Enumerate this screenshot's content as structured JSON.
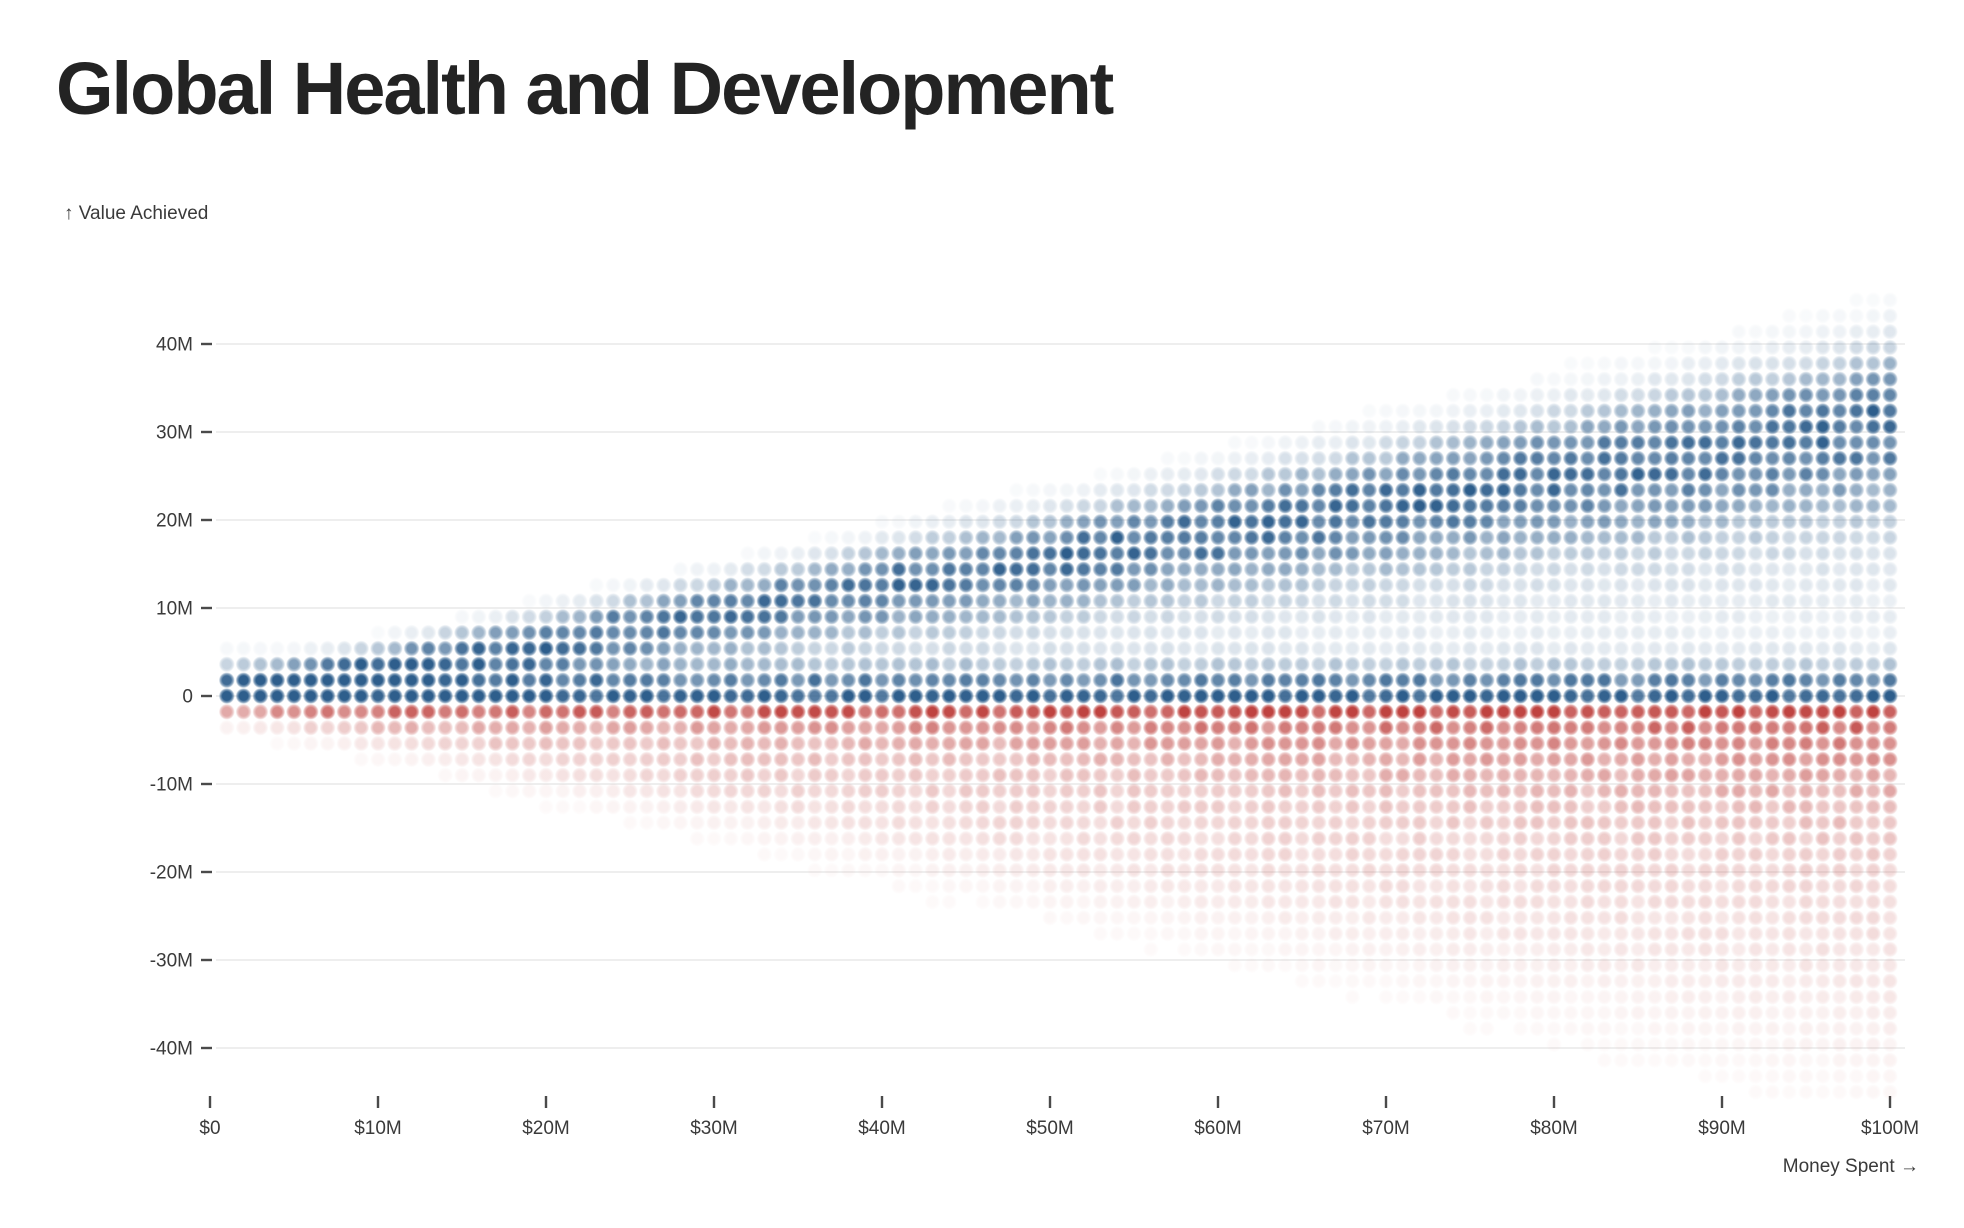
{
  "page": {
    "background": "#ffffff"
  },
  "chart_data": {
    "type": "scatter",
    "variant": "probability-dot-grid-fan",
    "title": "Global Health and Development",
    "x_axis": {
      "label": "Money Spent →",
      "unit": "US dollars, millions",
      "min": 0,
      "max": 100,
      "ticks": [
        {
          "value": 0,
          "label": "$0"
        },
        {
          "value": 10,
          "label": "$10M"
        },
        {
          "value": 20,
          "label": "$20M"
        },
        {
          "value": 30,
          "label": "$30M"
        },
        {
          "value": 40,
          "label": "$40M"
        },
        {
          "value": 50,
          "label": "$50M"
        },
        {
          "value": 60,
          "label": "$60M"
        },
        {
          "value": 70,
          "label": "$70M"
        },
        {
          "value": 80,
          "label": "$80M"
        },
        {
          "value": 90,
          "label": "$90M"
        },
        {
          "value": 100,
          "label": "$100M"
        }
      ]
    },
    "y_axis": {
      "label": "↑ Value Achieved",
      "unit": "value, millions",
      "min": -45,
      "max": 47,
      "ticks": [
        {
          "value": 40,
          "label": "40M"
        },
        {
          "value": 30,
          "label": "30M"
        },
        {
          "value": 20,
          "label": "20M"
        },
        {
          "value": 10,
          "label": "10M"
        },
        {
          "value": 0,
          "label": "0"
        },
        {
          "value": -10,
          "label": "-10M"
        },
        {
          "value": -20,
          "label": "-20M"
        },
        {
          "value": -30,
          "label": "-30M"
        },
        {
          "value": -40,
          "label": "-40M"
        }
      ]
    },
    "grid": true,
    "legend": null,
    "encoding": "Each vertical column of dots is the outcome distribution for a given amount of money spent (one column per $1M from $1M to $100M). Dot opacity encodes probability of achieving that value; blue dots are positive value achieved, red dots are negative value. The spread and the expected value fan out as spending increases; a dark band of likely near-zero outcomes hugs the zero line, a success mode rises at roughly 0.32x of money spent (reaching ~30M value at $100M), and a fading loss tail extends to about -0.45x of money spent.",
    "dot_grid": {
      "money_start": 1,
      "money_end": 100,
      "money_step": 1,
      "value_step": 1.8,
      "value_row_min": -25,
      "value_row_max": 26
    },
    "opacity_model": {
      "alpha_min": 0.03,
      "jitter": 0.18,
      "positive": {
        "success_mode": {
          "center_frac": 0.32,
          "sd_above_frac": 0.035,
          "sd_above_base": 1.2,
          "sd_below_frac": 0.06,
          "sd_below_base": 1.2,
          "amp": 0.8
        },
        "zero_spike": {
          "sd": 2.2,
          "amp": 0.92
        },
        "plateau": {
          "center_frac": 0.16,
          "sd_frac": 0.16,
          "amp": 0.11
        }
      },
      "negative": {
        "exp_tail": {
          "scale_frac": 0.125,
          "scale_base": 1.0,
          "amp": 0.92
        },
        "failure_mode": {
          "center_frac": 0.3,
          "sd_frac": 0.07,
          "sd_base": 1.0,
          "amp": 0.15,
          "amp_decay": 80
        },
        "zero_spike": {
          "sd": 1.8,
          "amp": 0.3
        }
      }
    },
    "colors": {
      "positive_dot": "#2e5e8c",
      "negative_dot": "#bf4340",
      "gridline": "#e9e9e9",
      "tick": "#4a4a4a",
      "axis_text": "#3a3a3a",
      "title_text": "#232323"
    }
  }
}
